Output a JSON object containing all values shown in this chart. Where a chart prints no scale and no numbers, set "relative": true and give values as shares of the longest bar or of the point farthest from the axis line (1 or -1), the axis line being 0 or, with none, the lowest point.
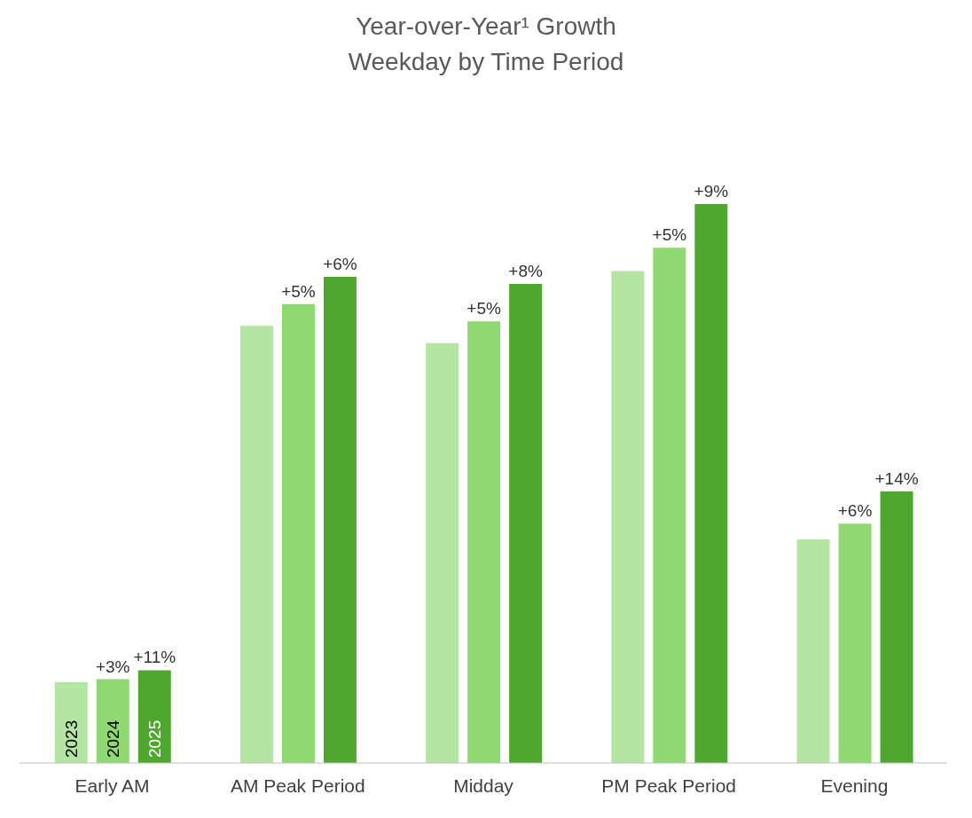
{
  "chart_data": {
    "type": "bar",
    "title": "Year-over-Year¹ Growth",
    "subtitle": "Weekday by Time Period",
    "relative": true,
    "categories": [
      "Early AM",
      "AM Peak Period",
      "Midday",
      "PM Peak Period",
      "Evening"
    ],
    "series": [
      {
        "name": "2023",
        "color": "#b5e5a2",
        "values": [
          0.145,
          0.782,
          0.751,
          0.88,
          0.4
        ]
      },
      {
        "name": "2024",
        "color": "#8fd872",
        "values": [
          0.15,
          0.821,
          0.79,
          0.922,
          0.428
        ]
      },
      {
        "name": "2025",
        "color": "#4ea72e",
        "values": [
          0.166,
          0.87,
          0.857,
          1,
          0.486
        ]
      }
    ],
    "annotations": [
      "+3%",
      "+11%",
      "+5%",
      "+6%",
      "+5%",
      "+8%",
      "+5%",
      "+9%",
      "+6%",
      "+14%"
    ],
    "legend": false,
    "grid": false
  }
}
